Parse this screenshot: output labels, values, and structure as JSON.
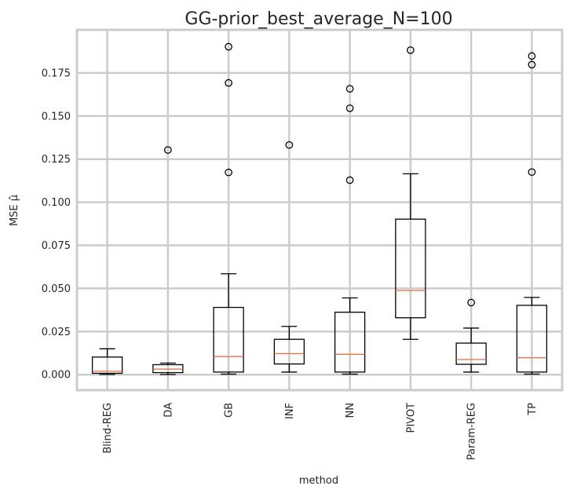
{
  "chart_data": {
    "type": "box",
    "title": "GG-prior_best_average_N=100",
    "xlabel": "method",
    "ylabel": "MSE μ̂",
    "ylim": [
      -0.009,
      0.2
    ],
    "yticks": [
      "0.000",
      "0.025",
      "0.050",
      "0.075",
      "0.100",
      "0.125",
      "0.150",
      "0.175"
    ],
    "ytick_values": [
      0.0,
      0.025,
      0.05,
      0.075,
      0.1,
      0.125,
      0.15,
      0.175
    ],
    "grid": true,
    "colors": {
      "grid": "#cccccc",
      "box": "#000000",
      "median": "#e8734a",
      "background": "#ffffff"
    },
    "categories": [
      "Blind-REG",
      "DA",
      "GB",
      "INF",
      "NN",
      "PIVOT",
      "Param-REG",
      "TP"
    ],
    "boxes": [
      {
        "name": "Blind-REG",
        "whislo": 0.0001,
        "q1": 0.0008,
        "med": 0.002,
        "q3": 0.0102,
        "whishi": 0.015,
        "fliers": []
      },
      {
        "name": "DA",
        "whislo": 0.0001,
        "q1": 0.0012,
        "med": 0.0032,
        "q3": 0.0058,
        "whishi": 0.0067,
        "fliers": [
          0.1303
        ]
      },
      {
        "name": "GB",
        "whislo": 0.0003,
        "q1": 0.0015,
        "med": 0.0105,
        "q3": 0.039,
        "whishi": 0.0585,
        "fliers": [
          0.1173,
          0.1692,
          0.1902
        ]
      },
      {
        "name": "INF",
        "whislo": 0.0015,
        "q1": 0.0062,
        "med": 0.0122,
        "q3": 0.0205,
        "whishi": 0.028,
        "fliers": [
          0.1332
        ]
      },
      {
        "name": "NN",
        "whislo": 0.0003,
        "q1": 0.0015,
        "med": 0.0118,
        "q3": 0.0362,
        "whishi": 0.0445,
        "fliers": [
          0.1128,
          0.1545,
          0.1658
        ]
      },
      {
        "name": "PIVOT",
        "whislo": 0.0205,
        "q1": 0.033,
        "med": 0.0488,
        "q3": 0.0902,
        "whishi": 0.1165,
        "fliers": [
          0.1882
        ]
      },
      {
        "name": "Param-REG",
        "whislo": 0.0015,
        "q1": 0.006,
        "med": 0.0088,
        "q3": 0.0183,
        "whishi": 0.027,
        "fliers": [
          0.0418
        ]
      },
      {
        "name": "TP",
        "whislo": 0.0003,
        "q1": 0.0015,
        "med": 0.0098,
        "q3": 0.0402,
        "whishi": 0.0448,
        "fliers": [
          0.1175,
          0.1798,
          0.1848
        ]
      }
    ]
  }
}
